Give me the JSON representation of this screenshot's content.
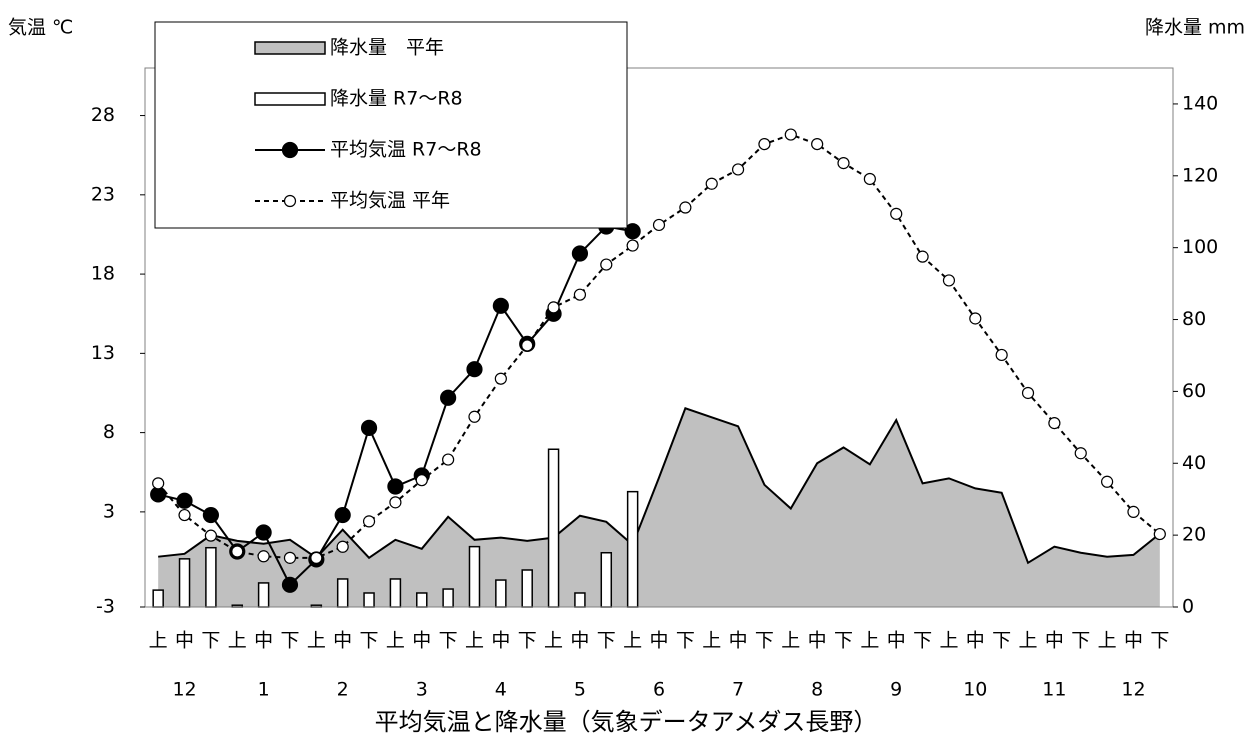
{
  "chart_data": {
    "type": "combo",
    "title": "平均気温と降水量（気象データアメダス長野）",
    "y_label": "気温 ℃",
    "y2_label": "降水量 mm",
    "categories": [
      "上",
      "中",
      "下",
      "上",
      "中",
      "下",
      "上",
      "中",
      "下",
      "上",
      "中",
      "下",
      "上",
      "中",
      "下",
      "上",
      "中",
      "下",
      "上",
      "中",
      "下",
      "上",
      "中",
      "下",
      "上",
      "中",
      "下",
      "上",
      "中",
      "下",
      "上",
      "中",
      "下",
      "上",
      "中",
      "下",
      "上",
      "中",
      "下"
    ],
    "month_labels": [
      "12",
      "1",
      "2",
      "3",
      "4",
      "5",
      "6",
      "7",
      "8",
      "9",
      "10",
      "11",
      "12"
    ],
    "ylim": [
      -3,
      31
    ],
    "yticks": [
      -3,
      3,
      8,
      13,
      18,
      23,
      28
    ],
    "y2lim": [
      0,
      150
    ],
    "y2ticks": [
      0,
      20,
      40,
      60,
      80,
      100,
      120,
      140
    ],
    "legend": "upper left",
    "series": [
      {
        "name": "降水量　平年",
        "kind": "area",
        "axis": "y2",
        "color": "#c0c0c0",
        "values": [
          14,
          14.8,
          20,
          18.4,
          17.6,
          18.7,
          13.7,
          21.5,
          13.7,
          18.7,
          16.2,
          25.1,
          18.7,
          19.3,
          18.4,
          19.3,
          25.4,
          23.7,
          17.3,
          36,
          55.3,
          52.8,
          50.3,
          34,
          27.4,
          40,
          44.4,
          39.7,
          52,
          34.4,
          35.8,
          33,
          31.8,
          12.3,
          16.8,
          15.1,
          14,
          14.5,
          20.4
        ]
      },
      {
        "name": "降水量 R7～R8",
        "kind": "bar",
        "axis": "y2",
        "color": "#ffffff",
        "values": [
          4.7,
          13.4,
          16.5,
          0.5,
          6.7,
          0,
          0.5,
          7.8,
          3.9,
          7.8,
          3.9,
          5,
          16.8,
          7.5,
          10.3,
          43.9,
          3.9,
          15.1,
          32.1,
          null,
          null,
          null,
          null,
          null,
          null,
          null,
          null,
          null,
          null,
          null,
          null,
          null,
          null,
          null,
          null,
          null,
          null,
          null,
          null
        ]
      },
      {
        "name": "平均気温 R7～R8",
        "kind": "line",
        "color": "#000000",
        "values": [
          4.1,
          3.7,
          2.8,
          0.5,
          1.7,
          -1.6,
          0,
          2.8,
          8.3,
          4.6,
          5.3,
          10.2,
          12,
          16,
          13.6,
          15.5,
          19.3,
          21,
          20.7,
          null,
          null,
          null,
          null,
          null,
          null,
          null,
          null,
          null,
          null,
          null,
          null,
          null,
          null,
          null,
          null,
          null,
          null,
          null,
          null
        ]
      },
      {
        "name": "平均気温 平年",
        "kind": "dashed",
        "color": "#000000",
        "values": [
          4.8,
          2.8,
          1.5,
          0.5,
          0.2,
          0.1,
          0.1,
          0.8,
          2.4,
          3.6,
          5,
          6.3,
          9,
          11.4,
          13.5,
          15.9,
          16.7,
          18.6,
          19.8,
          21.1,
          22.2,
          23.7,
          24.6,
          26.2,
          26.8,
          26.2,
          25,
          24,
          21.8,
          19.1,
          17.6,
          15.2,
          12.9,
          10.5,
          8.6,
          6.7,
          4.9,
          3,
          1.6
        ]
      }
    ]
  }
}
